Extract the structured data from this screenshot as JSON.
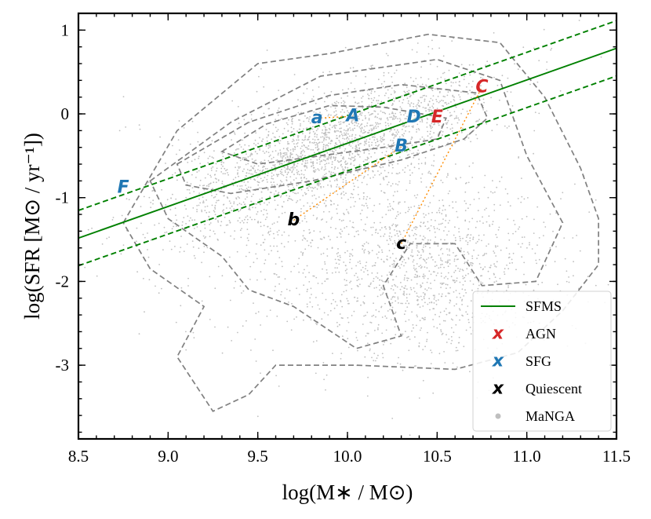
{
  "chart_data": {
    "type": "scatter",
    "xlabel": "log(M∗ / M⊙)",
    "ylabel": "log(SFR [M⊙ / yr⁻¹])",
    "xlim": [
      8.5,
      11.5
    ],
    "ylim": [
      -3.88,
      1.2
    ],
    "xticks": [
      8.5,
      9.0,
      9.5,
      10.0,
      10.5,
      11.0,
      11.5
    ],
    "xtick_labels": [
      "8.5",
      "9.0",
      "9.5",
      "10.0",
      "10.5",
      "11.0",
      "11.5"
    ],
    "yticks": [
      1,
      0,
      -1,
      -2,
      -3
    ],
    "ytick_labels": [
      "1",
      "0",
      "-1",
      "-2",
      "-3"
    ],
    "sfms": {
      "slope": 0.755,
      "intercept": -7.9,
      "offset": 0.33
    },
    "colors": {
      "sfms": "#008000",
      "agn": "#d62728",
      "sfg": "#1f77b4",
      "quiescent": "#000000",
      "manga": "#bfbfbf",
      "contour": "#808080",
      "connector": "#ff8c00"
    },
    "points": [
      {
        "label": "a",
        "class": "sfg",
        "x": 9.83,
        "y": -0.05
      },
      {
        "label": "A",
        "class": "sfg",
        "x": 10.03,
        "y": -0.03
      },
      {
        "label": "D",
        "class": "sfg",
        "x": 10.37,
        "y": -0.04
      },
      {
        "label": "E",
        "class": "agn",
        "x": 10.5,
        "y": -0.04
      },
      {
        "label": "C",
        "class": "agn",
        "x": 10.75,
        "y": 0.32
      },
      {
        "label": "B",
        "class": "sfg",
        "x": 10.3,
        "y": -0.39
      },
      {
        "label": "F",
        "class": "sfg",
        "x": 8.75,
        "y": -0.88
      },
      {
        "label": "b",
        "class": "quiescent",
        "x": 9.7,
        "y": -1.27
      },
      {
        "label": "c",
        "class": "quiescent",
        "x": 10.3,
        "y": -1.55
      }
    ],
    "connectors": [
      {
        "from": "a",
        "to": "A"
      },
      {
        "from": "b",
        "to": "B"
      },
      {
        "from": "c",
        "to": "C"
      }
    ],
    "contours": [
      [
        [
          9.3,
          -0.45
        ],
        [
          9.55,
          -0.12
        ],
        [
          9.9,
          0.1
        ],
        [
          10.2,
          0.08
        ],
        [
          10.55,
          -0.05
        ],
        [
          10.5,
          -0.3
        ],
        [
          10.2,
          -0.4
        ],
        [
          9.85,
          -0.5
        ],
        [
          9.5,
          -0.6
        ],
        [
          9.3,
          -0.45
        ]
      ],
      [
        [
          9.05,
          -0.6
        ],
        [
          9.45,
          -0.1
        ],
        [
          9.9,
          0.22
        ],
        [
          10.3,
          0.35
        ],
        [
          10.72,
          0.25
        ],
        [
          10.78,
          -0.05
        ],
        [
          10.65,
          -0.3
        ],
        [
          10.3,
          -0.55
        ],
        [
          9.8,
          -0.8
        ],
        [
          9.35,
          -0.95
        ],
        [
          9.1,
          -0.85
        ],
        [
          9.05,
          -0.6
        ]
      ],
      [
        [
          8.9,
          -0.8
        ],
        [
          9.35,
          -0.1
        ],
        [
          9.85,
          0.45
        ],
        [
          10.5,
          0.65
        ],
        [
          10.85,
          0.4
        ],
        [
          11.0,
          -0.5
        ],
        [
          11.2,
          -1.3
        ],
        [
          11.05,
          -2.0
        ],
        [
          10.75,
          -2.05
        ],
        [
          10.6,
          -1.55
        ],
        [
          10.35,
          -1.55
        ],
        [
          10.2,
          -2.05
        ],
        [
          10.3,
          -2.65
        ],
        [
          10.05,
          -2.8
        ],
        [
          9.7,
          -2.3
        ],
        [
          9.45,
          -2.1
        ],
        [
          9.3,
          -1.7
        ],
        [
          9.0,
          -1.25
        ],
        [
          8.9,
          -0.8
        ]
      ],
      [
        [
          8.75,
          -1.3
        ],
        [
          9.05,
          -0.2
        ],
        [
          9.5,
          0.6
        ],
        [
          9.9,
          0.72
        ],
        [
          10.45,
          0.95
        ],
        [
          10.85,
          0.85
        ],
        [
          11.1,
          0.2
        ],
        [
          11.3,
          -0.65
        ],
        [
          11.4,
          -1.25
        ],
        [
          11.4,
          -1.8
        ],
        [
          11.2,
          -2.35
        ],
        [
          10.95,
          -2.85
        ],
        [
          10.6,
          -3.05
        ],
        [
          10.05,
          -3.0
        ],
        [
          9.6,
          -3.0
        ],
        [
          9.45,
          -3.35
        ],
        [
          9.25,
          -3.55
        ],
        [
          9.05,
          -2.9
        ],
        [
          9.2,
          -2.3
        ],
        [
          8.9,
          -1.85
        ],
        [
          8.75,
          -1.3
        ]
      ]
    ],
    "legend": {
      "position": "lower-right",
      "entries": [
        {
          "label": "SFMS",
          "marker": "line",
          "class": "sfms"
        },
        {
          "label": "AGN",
          "marker": "x",
          "class": "agn"
        },
        {
          "label": "SFG",
          "marker": "x",
          "class": "sfg"
        },
        {
          "label": "Quiescent",
          "marker": "x",
          "class": "quiescent"
        },
        {
          "label": "MaNGA",
          "marker": "dot",
          "class": "manga"
        }
      ]
    }
  }
}
